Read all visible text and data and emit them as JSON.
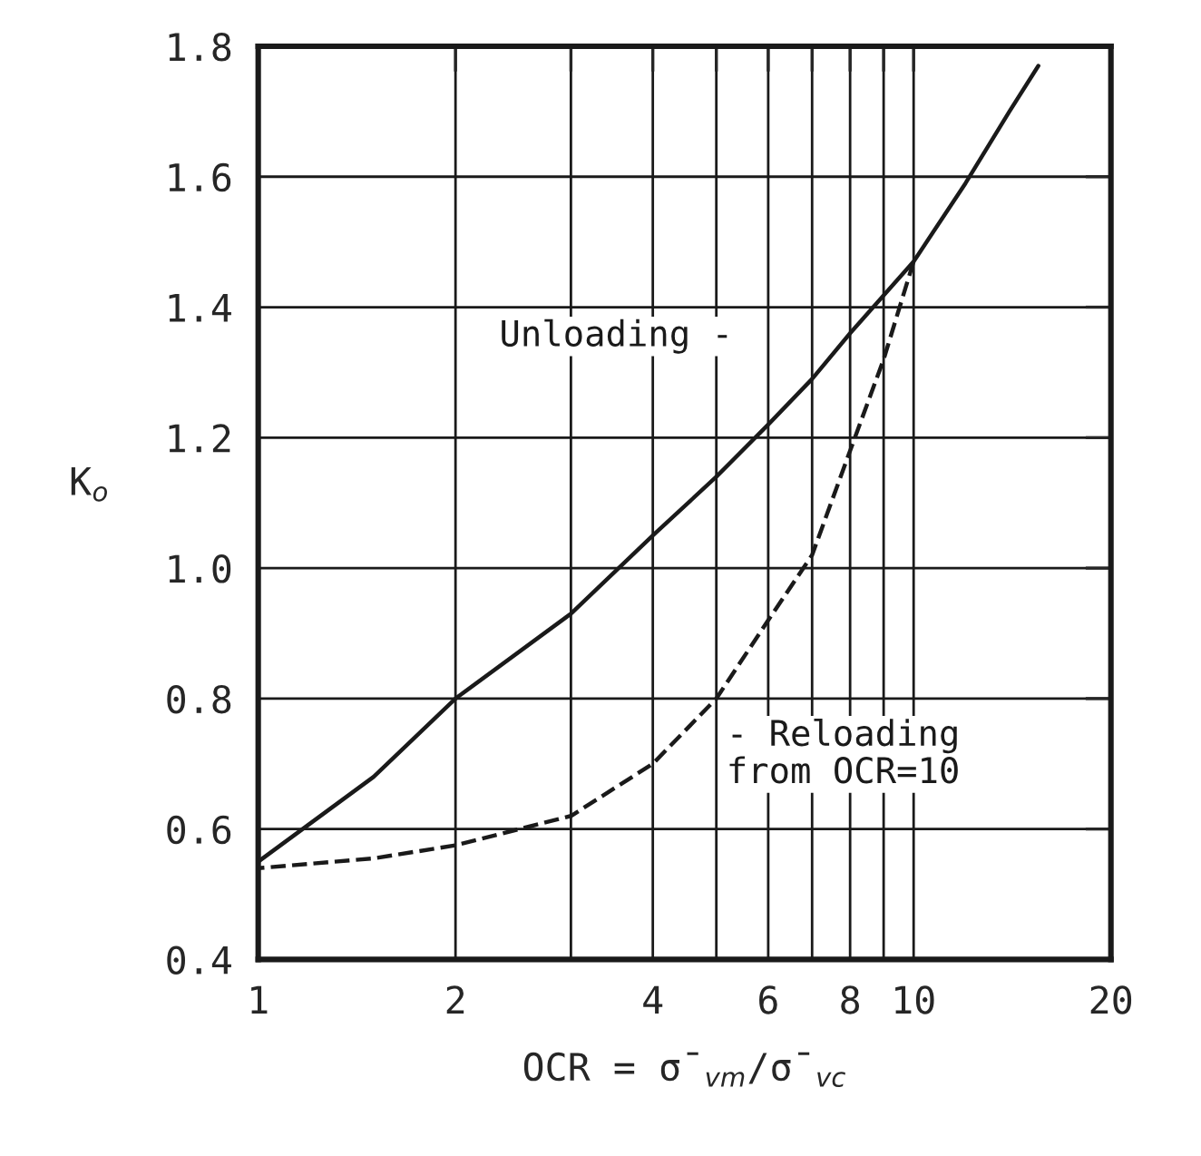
{
  "chart_data": {
    "type": "line",
    "xlabel": "OCR = σ̄$_{vm}$/σ̄$_{vc}$",
    "ylabel": "K$_{o}$",
    "log": "x",
    "xlim": [
      1,
      20
    ],
    "xticks": [
      1,
      2,
      {
        "value": 3,
        "label": null
      },
      4,
      {
        "value": 5,
        "label": null
      },
      6,
      {
        "value": 7,
        "label": null
      },
      8,
      {
        "value": 9,
        "label": null
      },
      10,
      20
    ],
    "ylim": [
      0.4,
      1.8
    ],
    "yticks": [
      0.4,
      0.6,
      0.8,
      {
        "value": 1.0,
        "label": "1.0"
      },
      1.2,
      1.4,
      1.6,
      1.8
    ],
    "grid": true,
    "series": [
      {
        "name": "Unloading -",
        "color": "#1a1a1a",
        "line_style": "solid",
        "x": [
          1,
          1.5,
          2,
          3,
          4,
          5,
          6,
          7,
          8,
          10,
          12,
          14,
          15.5
        ],
        "values": [
          0.55,
          0.68,
          0.8,
          0.93,
          1.05,
          1.14,
          1.22,
          1.29,
          1.36,
          1.47,
          1.59,
          1.7,
          1.77
        ]
      },
      {
        "name": "- Reloading\nfrom OCR=10",
        "color": "#1a1a1a",
        "line_style": "dashed",
        "x": [
          10,
          9,
          8,
          7,
          6,
          5,
          4,
          3,
          2,
          1.5,
          1
        ],
        "values": [
          1.47,
          1.32,
          1.18,
          1.02,
          0.92,
          0.8,
          0.7,
          0.62,
          0.575,
          0.555,
          0.54
        ]
      }
    ]
  }
}
